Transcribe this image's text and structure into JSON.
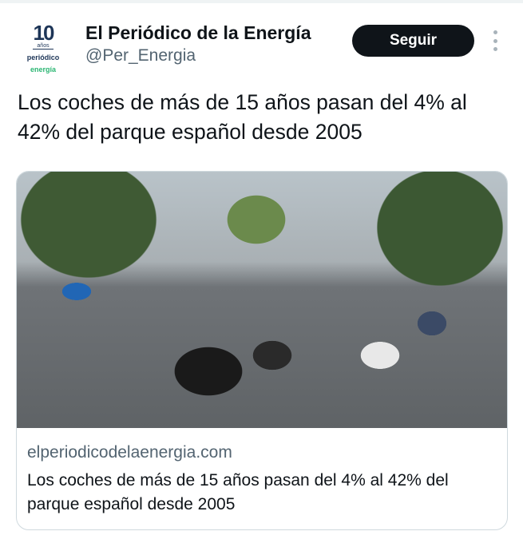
{
  "author": {
    "avatar": {
      "number": "10",
      "years": "años",
      "brand_line1": "periódico",
      "brand_line2": "energía"
    },
    "name": "El Periódico de la Energía",
    "handle": "@Per_Energia"
  },
  "follow_label": "Seguir",
  "more_icon": "more-vertical-icon",
  "tweet_text": "Los coches de más de 15 años pasan del 4% al 42% del parque español desde 2005",
  "card": {
    "domain": "elperiodicodelaenergia.com",
    "title": "Los coches de más de 15 años pasan del 4% al 42% del parque español desde 2005"
  },
  "colors": {
    "follow_bg": "#0f1419",
    "secondary_text": "#536471",
    "border": "#cfd9de"
  }
}
